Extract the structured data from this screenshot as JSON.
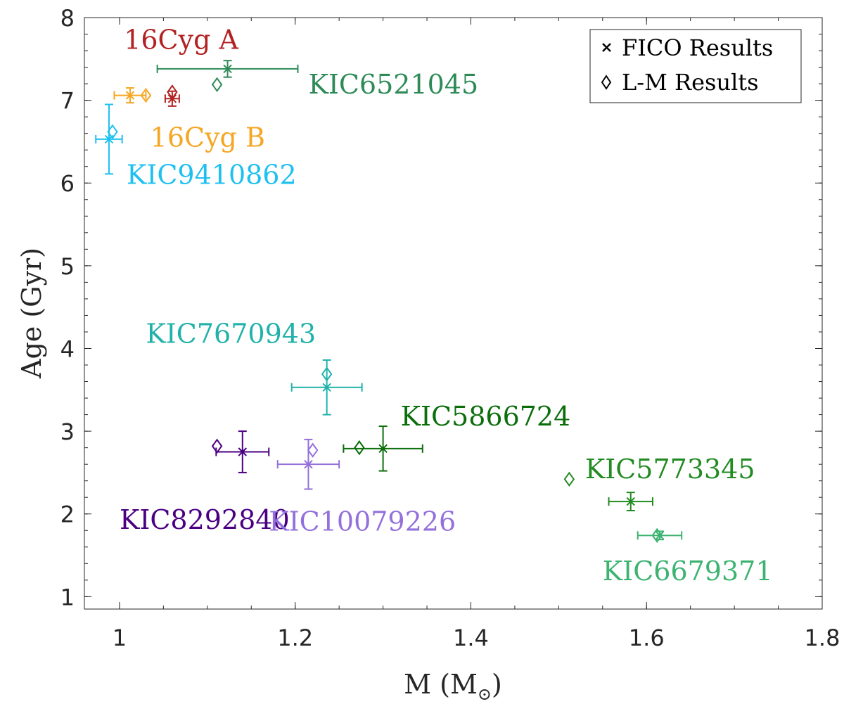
{
  "chart_data": {
    "type": "scatter",
    "title": "",
    "xlabel": "M (M",
    "xlabel_subscript": "⊙",
    "xlabel_close": ")",
    "ylabel": "Age (Gyr)",
    "xlim": [
      0.96,
      1.8
    ],
    "ylim": [
      0.85,
      8
    ],
    "xticks": [
      1,
      1.2,
      1.4,
      1.6,
      1.8
    ],
    "xtick_labels": [
      "1",
      "1.2",
      "1.4",
      "1.6",
      "1.8"
    ],
    "yticks": [
      1,
      2,
      3,
      4,
      5,
      6,
      7,
      8
    ],
    "ytick_labels": [
      "1",
      "2",
      "3",
      "4",
      "5",
      "6",
      "7",
      "8"
    ],
    "grid": false,
    "legend_position": "top-right",
    "legend": [
      {
        "marker": "x",
        "label": "FICO Results"
      },
      {
        "marker": "diamond",
        "label": "L-M Results"
      }
    ],
    "series": [
      {
        "name": "16Cyg A",
        "color": "#b22222",
        "fico": {
          "mass": 1.06,
          "age": 7.02,
          "mass_err": 0.008,
          "age_err": 0.09
        },
        "lm": {
          "mass": 1.06,
          "age": 7.1
        }
      },
      {
        "name": "16Cyg B",
        "color": "#f5a623",
        "fico": {
          "mass": 1.012,
          "age": 7.06,
          "mass_err": 0.018,
          "age_err": 0.09
        },
        "lm": {
          "mass": 1.03,
          "age": 7.06
        }
      },
      {
        "name": "KIC6521045",
        "color": "#2e8b57",
        "fico": {
          "mass": 1.123,
          "age": 7.38,
          "mass_err": 0.08,
          "age_err": 0.1
        },
        "lm": {
          "mass": 1.111,
          "age": 7.19
        }
      },
      {
        "name": "KIC9410862",
        "color": "#1ec0f0",
        "fico": {
          "mass": 0.988,
          "age": 6.53,
          "mass_err": 0.015,
          "age_err": 0.42
        },
        "lm": {
          "mass": 0.992,
          "age": 6.62
        }
      },
      {
        "name": "KIC7670943",
        "color": "#20b2aa",
        "fico": {
          "mass": 1.236,
          "age": 3.53,
          "mass_err": 0.04,
          "age_err": 0.33
        },
        "lm": {
          "mass": 1.236,
          "age": 3.69
        }
      },
      {
        "name": "KIC5866724",
        "color": "#0b6e0b",
        "fico": {
          "mass": 1.3,
          "age": 2.79,
          "mass_err": 0.045,
          "age_err": 0.27
        },
        "lm": {
          "mass": 1.273,
          "age": 2.8
        }
      },
      {
        "name": "KIC5773345",
        "color": "#228b22",
        "fico": {
          "mass": 1.582,
          "age": 2.15,
          "mass_err": 0.025,
          "age_err": 0.11
        },
        "lm": {
          "mass": 1.512,
          "age": 2.42
        }
      },
      {
        "name": "KIC8292840",
        "color": "#4b0082",
        "fico": {
          "mass": 1.14,
          "age": 2.75,
          "mass_err": 0.03,
          "age_err": 0.25
        },
        "lm": {
          "mass": 1.111,
          "age": 2.82
        }
      },
      {
        "name": "KIC10079226",
        "color": "#9370db",
        "fico": {
          "mass": 1.215,
          "age": 2.6,
          "mass_err": 0.035,
          "age_err": 0.3
        },
        "lm": {
          "mass": 1.22,
          "age": 2.77
        }
      },
      {
        "name": "KIC6679371",
        "color": "#3cb371",
        "fico": {
          "mass": 1.615,
          "age": 1.74,
          "mass_err": 0.025,
          "age_err": 0.05
        },
        "lm": {
          "mass": 1.612,
          "age": 1.74
        }
      }
    ]
  }
}
